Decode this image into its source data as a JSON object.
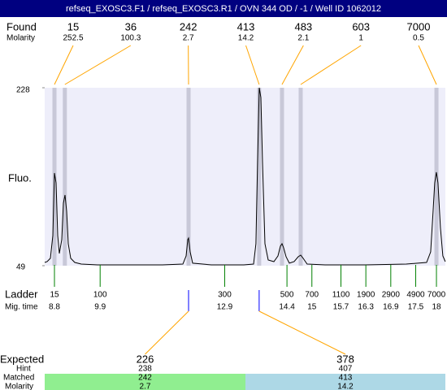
{
  "chart_data": {
    "type": "line",
    "title": "refseq_EXOSC3.F1 / refseq_EXOSC3.R1 / OVN 344 OD / -1 / Well ID 1062012",
    "y_label": "Fluo.",
    "ylim": [
      49,
      228
    ],
    "yticks": [
      49,
      228
    ],
    "xlim": [
      8.565,
      18.215
    ],
    "color": "#000000",
    "x": [
      8.565,
      8.624,
      8.702,
      8.761,
      8.8,
      8.839,
      8.878,
      8.917,
      8.976,
      9.015,
      9.054,
      9.094,
      9.133,
      9.191,
      9.289,
      9.446,
      9.837,
      10.424,
      11.403,
      11.892,
      11.97,
      12.01,
      12.029,
      12.068,
      12.127,
      12.577,
      13.36,
      13.595,
      13.653,
      13.692,
      13.732,
      13.771,
      13.81,
      13.869,
      13.947,
      14.084,
      14.182,
      14.241,
      14.28,
      14.319,
      14.378,
      14.456,
      14.573,
      14.671,
      14.73,
      14.789,
      14.886,
      15.317,
      16.295,
      17.274,
      17.763,
      17.861,
      17.92,
      17.958,
      17.998,
      18.037,
      18.096,
      18.154,
      18.213
    ],
    "values": [
      52.3,
      53.1,
      56.4,
      79.2,
      142.2,
      132.4,
      79.2,
      61.3,
      75.2,
      111.9,
      120.1,
      103.8,
      71.1,
      56.4,
      52.3,
      50.6,
      49.8,
      49.8,
      49.8,
      50.6,
      58.8,
      75.2,
      76.8,
      62.9,
      51.5,
      49.8,
      49.8,
      50.6,
      71.1,
      152.8,
      228,
      218.2,
      152.8,
      71.1,
      54.7,
      53.1,
      58.8,
      68.6,
      71.1,
      67.0,
      58.0,
      51.5,
      53.1,
      58.0,
      59.6,
      56.4,
      50.6,
      49.8,
      49.8,
      50.6,
      52.3,
      62.9,
      103.8,
      132.4,
      143.0,
      132.4,
      87.4,
      58.8,
      53.1
    ],
    "found": {
      "label": "Found",
      "molarity_label": "Molarity",
      "sizes": [
        15,
        36,
        242,
        413,
        483,
        603,
        7000
      ],
      "molarity": [
        252.5,
        100.3,
        2.7,
        14.2,
        2.1,
        1,
        0.5
      ],
      "times": [
        8.8,
        9.05,
        12.03,
        13.73,
        14.28,
        14.73,
        18.0
      ]
    },
    "ladder": {
      "label": "Ladder",
      "time_label": "Mig. time",
      "sizes": [
        15,
        100,
        300,
        500,
        700,
        1100,
        1900,
        2900,
        4900,
        7000
      ],
      "times": [
        8.8,
        9.9,
        12.9,
        14.4,
        15,
        15.7,
        16.3,
        16.9,
        17.5,
        18
      ]
    },
    "expected": {
      "label": "Expected",
      "sizes": [
        226,
        378
      ],
      "hint_label": "Hint",
      "hints": [
        238,
        407
      ],
      "matched_label": "Matched",
      "matched": [
        242,
        413
      ],
      "molarity_label": "Molarity",
      "molarity": [
        2.7,
        14.2
      ]
    }
  }
}
